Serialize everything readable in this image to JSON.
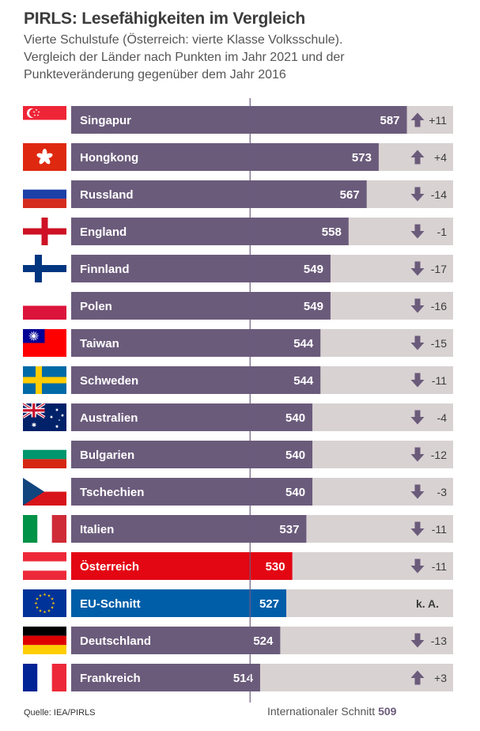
{
  "chart_data": {
    "type": "bar",
    "title": "PIRLS: Lesefähigkeiten im Vergleich",
    "subtitle_lines": [
      "Vierte Schulstufe (Österreich: vierte Klasse Volksschule).",
      "Vergleich der Länder nach Punkten im Jahr 2021 und der",
      "Punkteveränderung gegenüber dem Jahr 2016"
    ],
    "categories": [
      "Singapur",
      "Hongkong",
      "Russland",
      "England",
      "Finnland",
      "Polen",
      "Taiwan",
      "Schweden",
      "Australien",
      "Bulgarien",
      "Tschechien",
      "Italien",
      "Österreich",
      "EU-Schnitt",
      "Deutschland",
      "Frankreich"
    ],
    "series": [
      {
        "values": [
          587,
          573,
          567,
          558,
          549,
          549,
          544,
          544,
          540,
          540,
          540,
          537,
          530,
          527,
          524,
          514
        ]
      }
    ],
    "changes": [
      "+11",
      "+4",
      "-14",
      "-1",
      "-17",
      "-16",
      "-15",
      "-11",
      "-4",
      "-12",
      "-3",
      "-11",
      "-11",
      "k. A.",
      "-13",
      "+3"
    ],
    "direction": [
      "up",
      "up",
      "down",
      "down",
      "down",
      "down",
      "down",
      "down",
      "down",
      "down",
      "down",
      "down",
      "down",
      "none",
      "down",
      "up"
    ],
    "flags": [
      "singapore-flag",
      "hongkong-flag",
      "russia-flag",
      "england-flag",
      "finland-flag",
      "poland-flag",
      "taiwan-flag",
      "sweden-flag",
      "australia-flag",
      "bulgaria-flag",
      "czechia-flag",
      "italy-flag",
      "austria-flag",
      "eu-flag",
      "germany-flag",
      "france-flag"
    ],
    "reference_line": {
      "label": "Internationaler Schnitt",
      "value": 509
    },
    "xlim": [
      420,
      610
    ],
    "colors": {
      "bar": "#6b5b7b",
      "highlight": {
        "Österreich": "#e30613",
        "EU-Schnitt": "#005ea8"
      },
      "change_bg": "#d8d2d2",
      "arrow": "#6b5b7b",
      "text_on_bar": "#ffffff"
    }
  },
  "source": "Quelle: IEA/PIRLS"
}
